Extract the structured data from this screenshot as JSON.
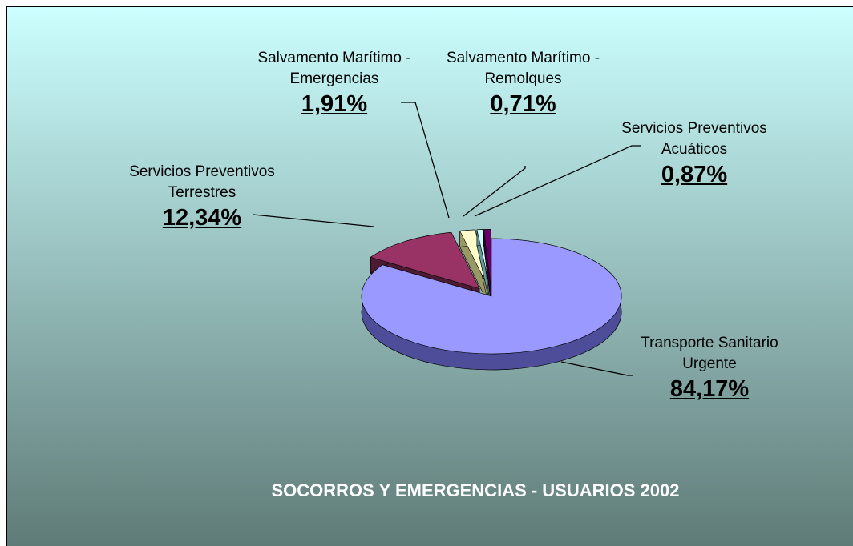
{
  "chart_data": {
    "type": "pie",
    "title": "SOCORROS Y EMERGENCIAS - USUARIOS 2002",
    "categories": [
      "Transporte Sanitario Urgente",
      "Servicios Preventivos Terrestres",
      "Salvamento Marítimo - Emergencias",
      "Salvamento Marítimo - Remolques",
      "Servicios Preventivos Acuáticos"
    ],
    "values": [
      84.17,
      12.34,
      1.91,
      0.71,
      0.87
    ],
    "value_labels": [
      "84,17%",
      "12,34%",
      "1,91%",
      "0,71%",
      "0,87%"
    ],
    "colors": [
      "#9999ff",
      "#993366",
      "#ffffcc",
      "#ccffff",
      "#660066"
    ],
    "side_colors": [
      "#4d4d99",
      "#4d1a33",
      "#999966",
      "#669999",
      "#330033"
    ]
  }
}
